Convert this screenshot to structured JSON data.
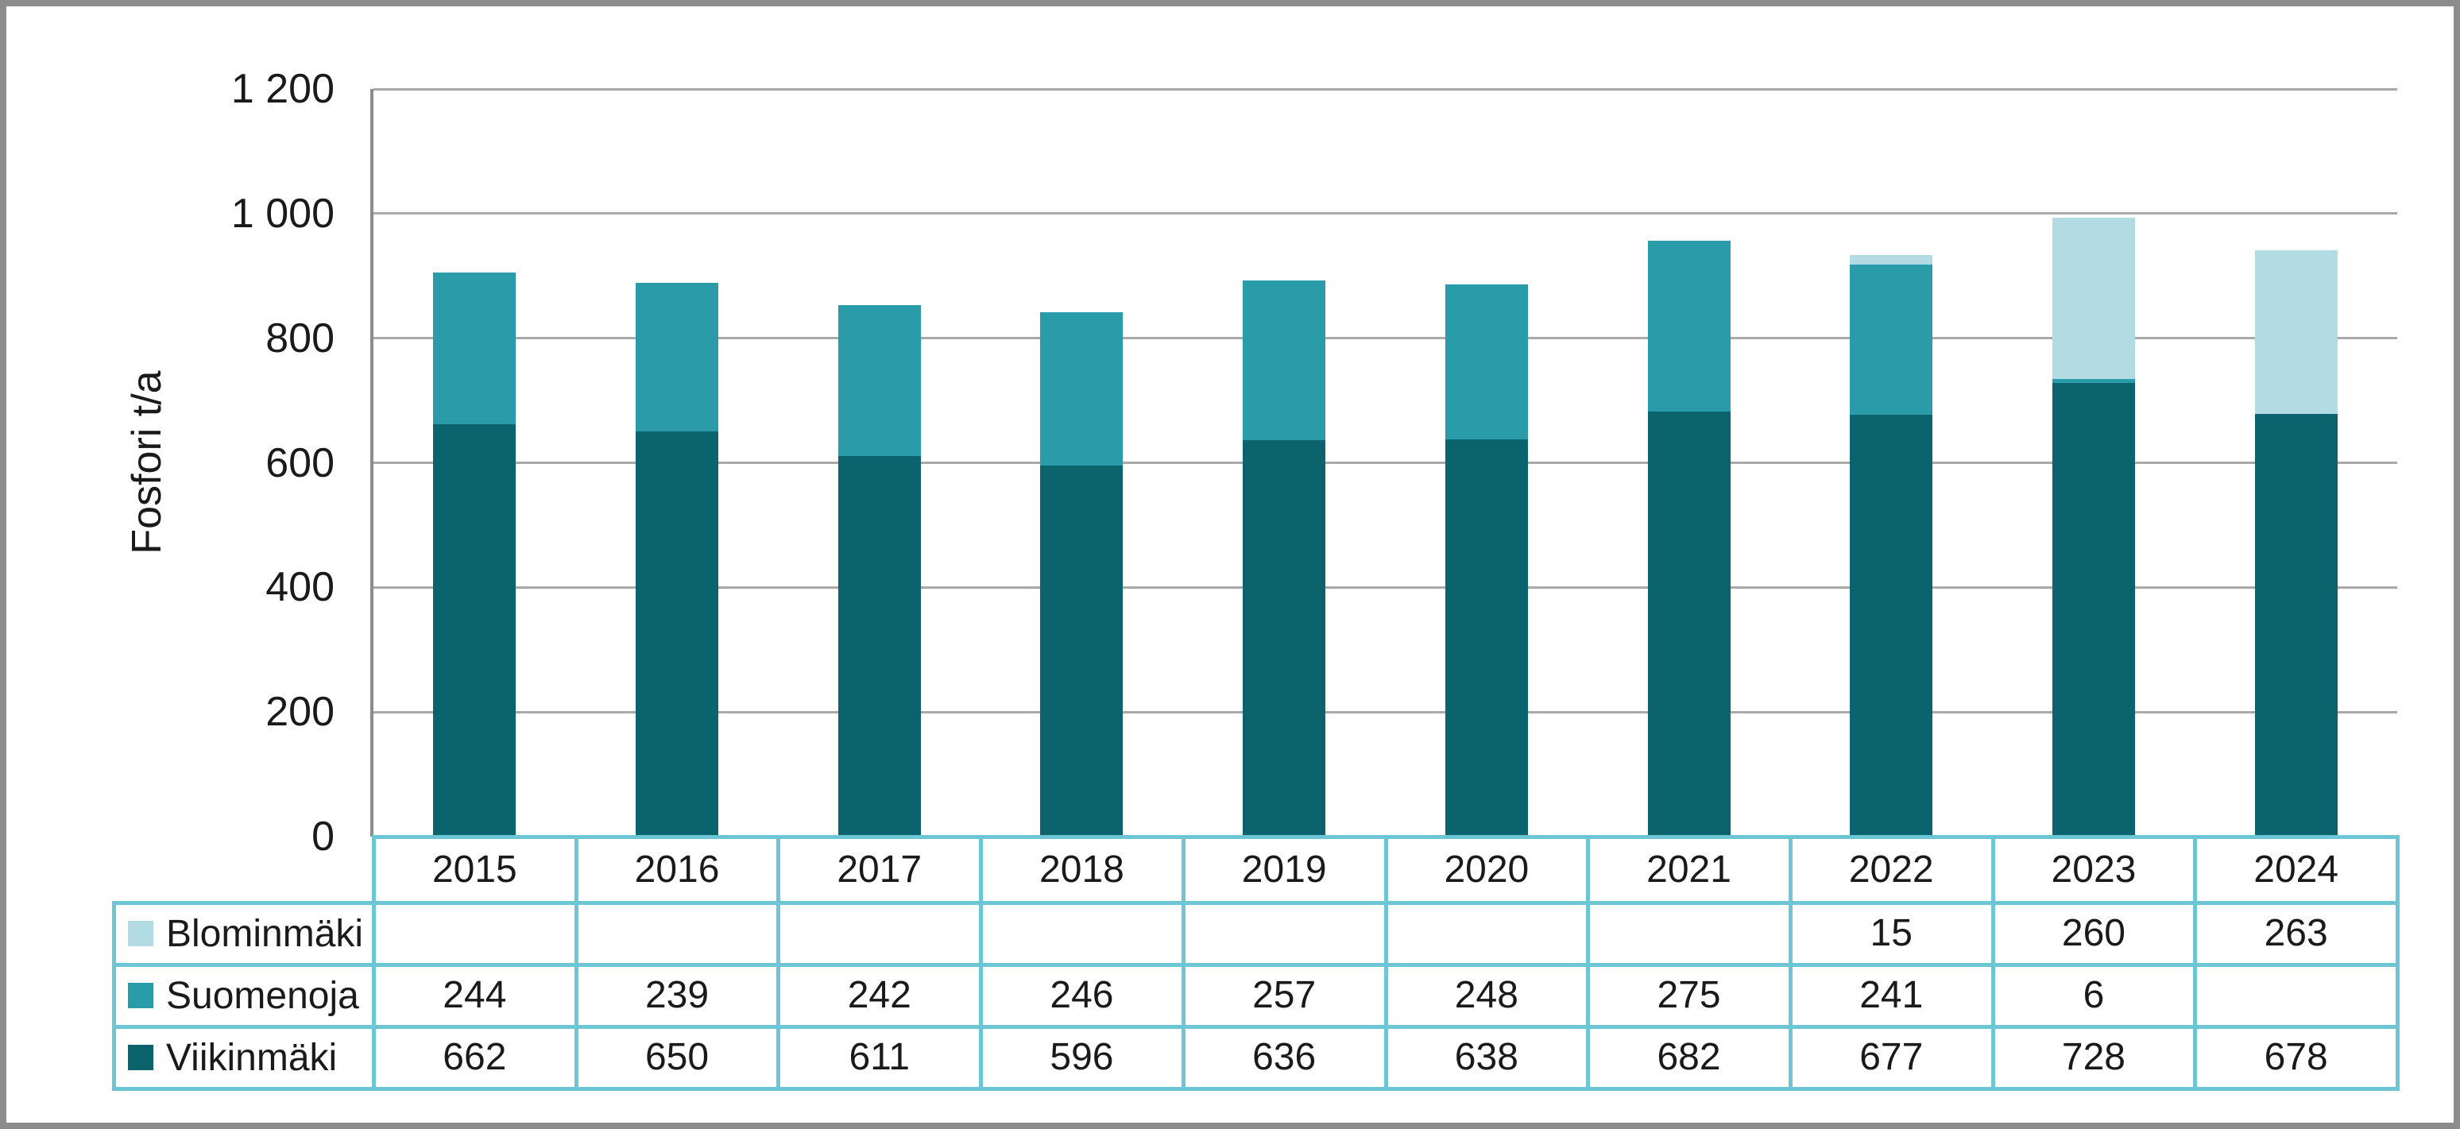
{
  "chart_data": {
    "type": "bar",
    "stacked": true,
    "title": "",
    "xlabel": "",
    "ylabel": "Fosfori t/a",
    "ylim": [
      0,
      1200
    ],
    "grid": true,
    "legend_position": "left-of-data-table",
    "ytick_values": [
      0,
      200,
      400,
      600,
      800,
      1000,
      1200
    ],
    "ytick_labels": [
      "0",
      "200",
      "400",
      "600",
      "800",
      "1 000",
      "1 200"
    ],
    "categories": [
      "2015",
      "2016",
      "2017",
      "2018",
      "2019",
      "2020",
      "2021",
      "2022",
      "2023",
      "2024"
    ],
    "series": [
      {
        "name": "Viikinmäki",
        "color": "#0b636e",
        "values": [
          662,
          650,
          611,
          596,
          636,
          638,
          682,
          677,
          728,
          678
        ]
      },
      {
        "name": "Suomenoja",
        "color": "#2a9ba9",
        "values": [
          244,
          239,
          242,
          246,
          257,
          248,
          275,
          241,
          6,
          null
        ]
      },
      {
        "name": "Blominmäki",
        "color": "#b3dbe4",
        "values": [
          null,
          null,
          null,
          null,
          null,
          null,
          null,
          15,
          260,
          263
        ]
      }
    ],
    "data_table_row_order": [
      "Blominmäki",
      "Suomenoja",
      "Viikinmäki"
    ]
  },
  "colors": {
    "text": "#1a1a1a",
    "gridline": "#a9a9a9",
    "axis_line": "#8f8b8b",
    "table_border": "#6dc6d4",
    "frame_border": "#8c8c8c",
    "background": "#ffffff"
  }
}
